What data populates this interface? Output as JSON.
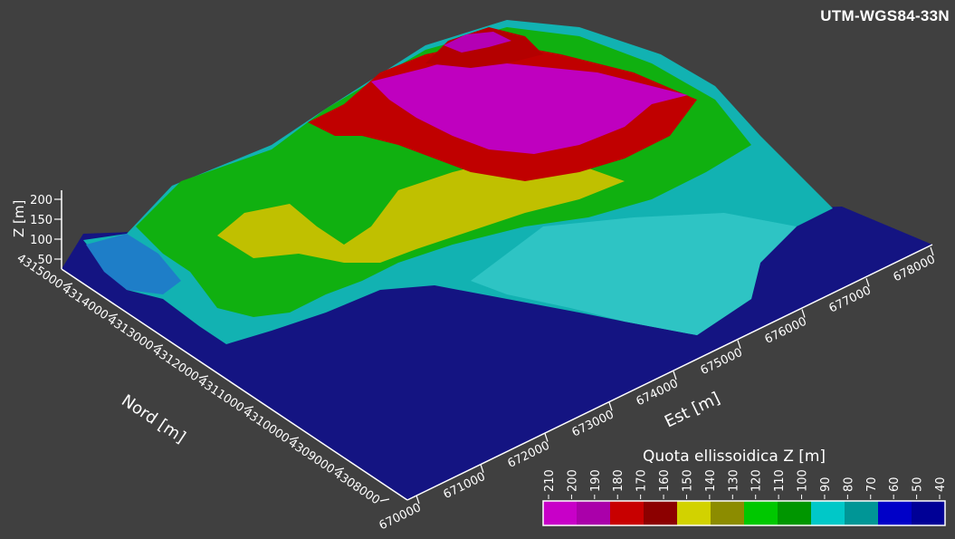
{
  "map": {
    "crs_label": "UTM-WGS84-33N",
    "z_axis": {
      "title": "Z [m]",
      "ticks": [
        "50",
        "100",
        "150",
        "200"
      ]
    },
    "north_axis": {
      "title": "Nord [m]",
      "ticks": [
        "4315000",
        "4314000",
        "4313000",
        "4312000",
        "4311000",
        "4310000",
        "4309000",
        "4308000"
      ]
    },
    "east_axis": {
      "title": "Est [m]",
      "ticks": [
        "670000",
        "671000",
        "672000",
        "673000",
        "674000",
        "675000",
        "676000",
        "677000",
        "678000"
      ]
    },
    "legend": {
      "title": "Quota ellissoidica Z [m]",
      "ticks": [
        "210",
        "200",
        "190",
        "180",
        "170",
        "160",
        "150",
        "140",
        "130",
        "120",
        "110",
        "100",
        "90",
        "80",
        "70",
        "60",
        "50",
        "40"
      ],
      "colors": [
        "#c800c8",
        "#aa00aa",
        "#c80000",
        "#8c0000",
        "#d2d200",
        "#8c8c00",
        "#00c800",
        "#009600",
        "#00c8c8",
        "#009696",
        "#0000c8",
        "#000096"
      ]
    }
  }
}
